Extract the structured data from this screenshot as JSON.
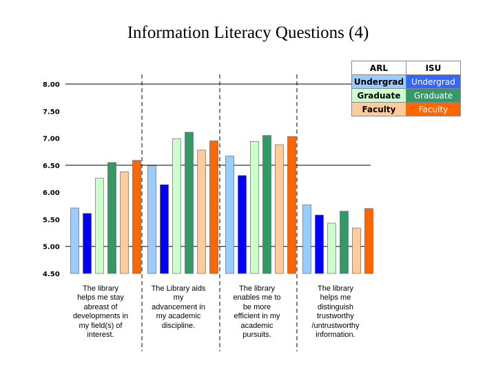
{
  "chart_data": {
    "type": "bar",
    "title": "Information Literacy Questions (4)",
    "categories": [
      [
        "The library",
        "helps me stay",
        "abreast of",
        "developments in",
        "my field(s) of",
        "interest."
      ],
      [
        "The Library aids",
        "my",
        "advancement in",
        "my academic",
        "discipline."
      ],
      [
        "The library",
        "enables me to",
        "be more",
        "efficient in my",
        "academic",
        "pursuits."
      ],
      [
        "The library",
        "helps me",
        "distinguish",
        "trustworthy",
        "/untrustworthy",
        "information."
      ]
    ],
    "series": [
      {
        "name": "ARL Undergrad",
        "color": "#99ccff",
        "values": [
          5.71,
          6.49,
          6.67,
          5.77
        ]
      },
      {
        "name": "ISU Undergrad",
        "color": "#0000ff",
        "values": [
          5.61,
          6.14,
          6.31,
          5.58
        ]
      },
      {
        "name": "ARL Graduate",
        "color": "#ccffcc",
        "values": [
          6.26,
          6.99,
          6.94,
          5.43
        ]
      },
      {
        "name": "ISU Graduate",
        "color": "#339966",
        "values": [
          6.55,
          7.11,
          7.05,
          5.65
        ]
      },
      {
        "name": "ARL Faculty",
        "color": "#ffcc99",
        "values": [
          6.38,
          6.78,
          6.88,
          5.34
        ]
      },
      {
        "name": "ISU Faculty",
        "color": "#ff6600",
        "values": [
          6.59,
          6.95,
          7.03,
          5.7
        ]
      }
    ],
    "ylim": [
      4.5,
      8.0
    ],
    "yticks": [
      "8.00",
      "7.50",
      "7.00",
      "6.50",
      "6.00",
      "5.50",
      "5.00",
      "4.50"
    ],
    "emphasized_gridlines": [
      8.0,
      6.5,
      5.0
    ],
    "legend": {
      "position": "top-right",
      "headers": [
        "ARL",
        "ISU"
      ],
      "rows": [
        {
          "arl": "Undergrad",
          "isu": "Undergrad",
          "arl_color": "#99ccff",
          "isu_color": "#3366ff"
        },
        {
          "arl": "Graduate",
          "isu": "Graduate",
          "arl_color": "#ccffcc",
          "isu_color": "#339966"
        },
        {
          "arl": "Faculty",
          "isu": "Faculty",
          "arl_color": "#ffcc99",
          "isu_color": "#ff6600"
        }
      ]
    }
  }
}
